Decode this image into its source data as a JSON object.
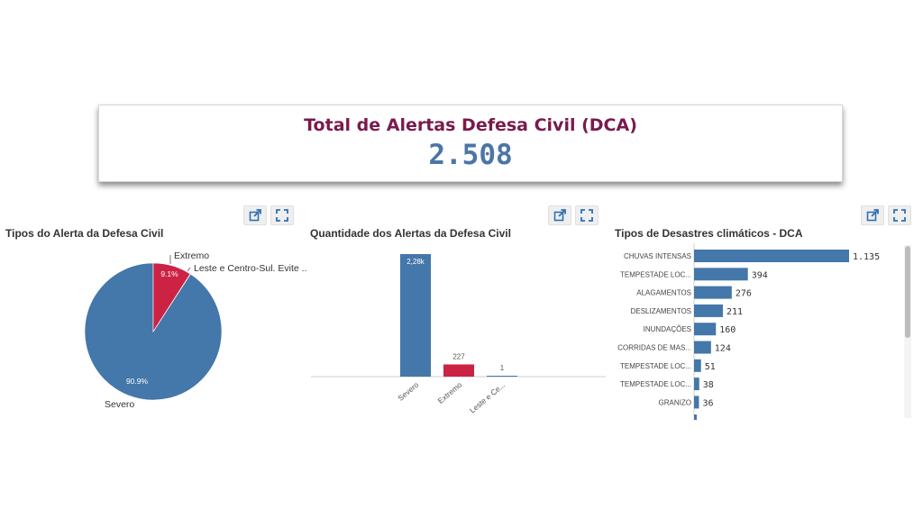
{
  "kpi": {
    "title": "Total de Alertas Defesa Civil (DCA)",
    "value": "2.508"
  },
  "colors": {
    "primary": "#4477aa",
    "accent": "#cc2244",
    "title": "#7a1a4c"
  },
  "icons": {
    "export": "export-icon",
    "expand": "expand-icon"
  },
  "chart_data": [
    {
      "type": "pie",
      "title": "Tipos do Alerta da Defesa Civil",
      "slices": [
        {
          "label": "Severo",
          "value": 90.9,
          "display": "90.9%",
          "color": "#4477aa"
        },
        {
          "label": "Extremo",
          "value": 9.1,
          "display": "9.1%",
          "color": "#cc2244"
        },
        {
          "label": "Leste e Centro-Sul. Evite ...",
          "value": 0.04,
          "display": "",
          "color": "#4477aa"
        }
      ]
    },
    {
      "type": "bar",
      "title": "Quantidade dos Alertas da Defesa Civil",
      "categories": [
        "Severo",
        "Extremo",
        "Leste e Ce..."
      ],
      "values": [
        2280,
        227,
        1
      ],
      "value_labels": [
        "2,28k",
        "227",
        "1"
      ],
      "colors": [
        "#4477aa",
        "#cc2244",
        "#4477aa"
      ]
    },
    {
      "type": "bar",
      "orientation": "horizontal",
      "title": "Tipos de Desastres climáticos - DCA",
      "categories": [
        "CHUVAS INTENSAS",
        "TEMPESTADE LOC...",
        "ALAGAMENTOS",
        "DESLIZAMENTOS",
        "INUNDAÇÕES",
        "CORRIDAS DE MAS...",
        "TEMPESTADE LOC...",
        "TEMPESTADE LOC...",
        "GRANIZO"
      ],
      "values": [
        1135,
        394,
        276,
        211,
        160,
        124,
        51,
        38,
        36
      ],
      "value_labels": [
        "1.135",
        "394",
        "276",
        "211",
        "160",
        "124",
        "51",
        "38",
        "36"
      ],
      "color": "#4477aa"
    }
  ]
}
